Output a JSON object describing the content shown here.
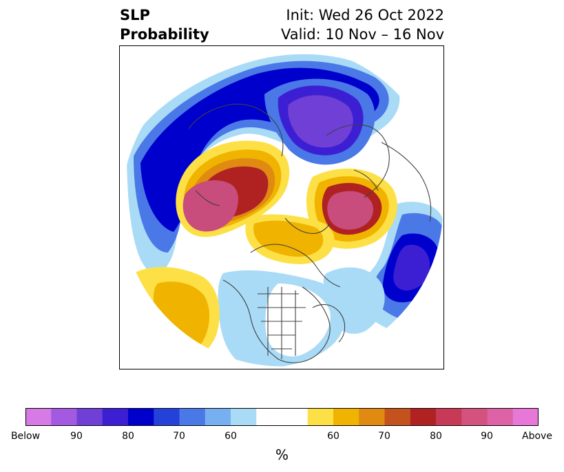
{
  "title": {
    "left_line1": "SLP",
    "left_line2": "Probability",
    "right_line1": "Init: Wed 26 Oct 2022",
    "right_line2": "Valid: 10 Nov – 16 Nov"
  },
  "colorbar": {
    "colors": [
      "#d67ae6",
      "#a35ae0",
      "#6f3fd6",
      "#3d1fd3",
      "#0000cc",
      "#2441d9",
      "#4a78e6",
      "#76b0f0",
      "#a9dbf7",
      "#ffffff",
      "#ffffff",
      "#fde046",
      "#f0b400",
      "#e08a12",
      "#c4521c",
      "#b02222",
      "#c63a58",
      "#d4527e",
      "#dd62a6",
      "#e878d8"
    ],
    "tick_labels": [
      "Below",
      "90",
      "80",
      "70",
      "60",
      "60",
      "70",
      "80",
      "90",
      "Above"
    ],
    "unit": "%"
  },
  "map": {
    "projection": "north-polar-stereographic",
    "anomaly_colors": {
      "deep_below": "#6f3fd6",
      "below": "#0000cc",
      "mid_below": "#4a78e6",
      "light_below": "#a9dbf7",
      "light_above": "#fde046",
      "above": "#f0b400",
      "mid_above": "#e08a12",
      "high_above": "#b02222",
      "peak_above": "#c84c7c"
    }
  }
}
